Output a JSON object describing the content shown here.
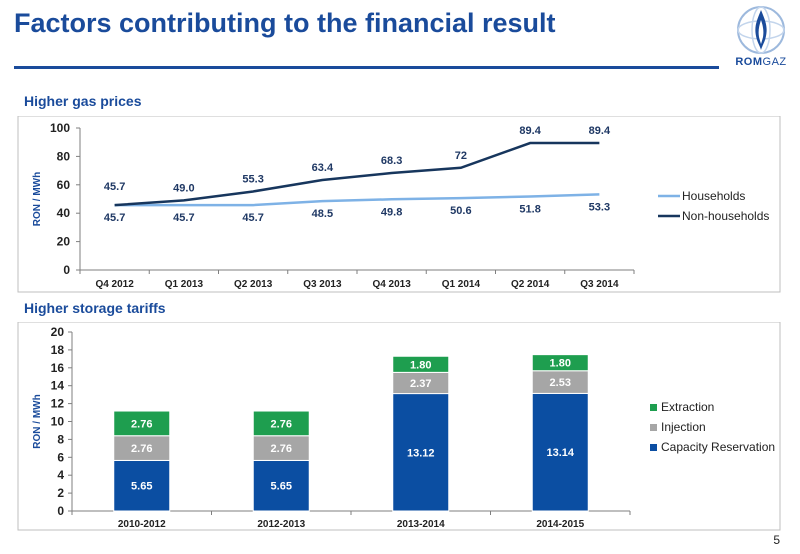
{
  "page": {
    "title": "Factors contributing to the financial result",
    "page_number": "5",
    "logo": {
      "text_bold": "ROM",
      "text_light": "GAZ",
      "icon": "flame-sphere-logo"
    }
  },
  "chart_data": [
    {
      "type": "line",
      "title": "Higher gas prices",
      "ylabel": "RON / MWh",
      "categories": [
        "Q4 2012",
        "Q1 2013",
        "Q2 2013",
        "Q3 2013",
        "Q4 2013",
        "Q1 2014",
        "Q2 2014",
        "Q3 2014"
      ],
      "ylim": [
        0,
        100
      ],
      "yticks": [
        0,
        20,
        40,
        60,
        80,
        100
      ],
      "grid": false,
      "legend": "right",
      "series": [
        {
          "name": "Households",
          "color": "#7eb2e6",
          "values": [
            45.7,
            45.7,
            45.7,
            48.5,
            49.8,
            50.6,
            51.8,
            53.3
          ],
          "labels": [
            "45.7",
            "45.7",
            "45.7",
            "48.5",
            "49.8",
            "50.6",
            "51.8",
            "53.3"
          ]
        },
        {
          "name": "Non-households",
          "color": "#17365d",
          "values": [
            45.7,
            49.0,
            55.3,
            63.4,
            68.3,
            72,
            89.4,
            89.4
          ],
          "labels": [
            "45.7",
            "49.0",
            "55.3",
            "63.4",
            "68.3",
            "72",
            "89.4",
            "89.4"
          ]
        }
      ]
    },
    {
      "type": "bar",
      "stacked": true,
      "title": "Higher storage tariffs",
      "ylabel": "RON / MWh",
      "categories": [
        "2010-2012",
        "2012-2013",
        "2013-2014",
        "2014-2015"
      ],
      "ylim": [
        0,
        20
      ],
      "yticks": [
        0,
        2,
        4,
        6,
        8,
        10,
        12,
        14,
        16,
        18,
        20
      ],
      "grid": false,
      "legend": "right",
      "series": [
        {
          "name": "Capacity Reservation",
          "color": "#0b4ea2",
          "values": [
            5.65,
            5.65,
            13.12,
            13.14
          ],
          "labels": [
            "5.65",
            "5.65",
            "13.12",
            "13.14"
          ]
        },
        {
          "name": "Injection",
          "color": "#a6a6a6",
          "values": [
            2.76,
            2.76,
            2.37,
            2.53
          ],
          "labels": [
            "2.76",
            "2.76",
            "2.37",
            "2.53"
          ]
        },
        {
          "name": "Extraction",
          "color": "#1e9e4f",
          "values": [
            2.76,
            2.76,
            1.8,
            1.8
          ],
          "labels": [
            "2.76",
            "2.76",
            "1.80",
            "1.80"
          ]
        }
      ]
    }
  ]
}
